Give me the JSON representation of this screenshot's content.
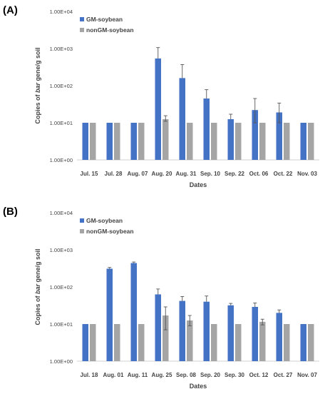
{
  "panels": [
    {
      "label": "(A)"
    },
    {
      "label": "(B)"
    }
  ],
  "chart_data": [
    {
      "type": "bar",
      "panel_label": "(A)",
      "xlabel": "Dates",
      "ylabel_parts": [
        "Copies of ",
        "bar",
        " gene/g soil"
      ],
      "y_scale": "log",
      "ylim": [
        1,
        10000
      ],
      "y_ticks": [
        "1.00E+00",
        "1.00E+01",
        "1.00E+02",
        "1.00E+03",
        "1.00E+04"
      ],
      "legend_position": "top-left",
      "categories": [
        "Jul. 15",
        "Jul. 28",
        "Aug. 07",
        "Aug. 20",
        "Aug. 31",
        "Sep. 10",
        "Sep. 22",
        "Oct. 06",
        "Oct. 22",
        "Nov. 03"
      ],
      "series": [
        {
          "name": "GM-soybean",
          "color": "#4472c4",
          "values": [
            10,
            10,
            10,
            540,
            160,
            45,
            12.5,
            22,
            19,
            10
          ],
          "errors_up": [
            null,
            null,
            null,
            1060,
            370,
            78,
            17,
            45,
            34,
            null
          ],
          "errors_low": [
            null,
            null,
            null,
            null,
            null,
            null,
            null,
            10,
            10,
            null
          ]
        },
        {
          "name": "nonGM-soybean",
          "color": "#a5a5a5",
          "values": [
            10,
            10,
            10,
            12.5,
            10,
            10,
            10,
            10,
            10,
            10
          ],
          "errors_up": [
            null,
            null,
            null,
            15.5,
            null,
            null,
            null,
            null,
            null,
            null
          ],
          "errors_low": [
            null,
            null,
            null,
            11,
            null,
            null,
            null,
            null,
            null,
            null
          ]
        }
      ]
    },
    {
      "type": "bar",
      "panel_label": "(B)",
      "xlabel": "Dates",
      "ylabel_parts": [
        "Copies of ",
        "bar",
        " gene/g soil"
      ],
      "y_scale": "log",
      "ylim": [
        1,
        10000
      ],
      "y_ticks": [
        "1.00E+00",
        "1.00E+01",
        "1.00E+02",
        "1.00E+03",
        "1.00E+04"
      ],
      "legend_position": "top-left",
      "categories": [
        "Jul. 18",
        "Aug. 01",
        "Aug. 11",
        "Aug. 25",
        "Sep. 08",
        "Sep. 20",
        "Sep. 30",
        "Oct. 12",
        "Oct. 27",
        "Nov. 07"
      ],
      "series": [
        {
          "name": "GM-soybean",
          "color": "#4472c4",
          "values": [
            10,
            310,
            440,
            63,
            42,
            40,
            32,
            29,
            20,
            10
          ],
          "errors_up": [
            null,
            335,
            470,
            88,
            55,
            57,
            36,
            37,
            24,
            null
          ],
          "errors_low": [
            null,
            null,
            null,
            null,
            null,
            null,
            null,
            null,
            null,
            null
          ]
        },
        {
          "name": "nonGM-soybean",
          "color": "#a5a5a5",
          "values": [
            10,
            10,
            10,
            17,
            12.5,
            10,
            10,
            11.5,
            10,
            10
          ],
          "errors_up": [
            null,
            null,
            null,
            29,
            17,
            null,
            null,
            13.5,
            null,
            null
          ],
          "errors_low": [
            null,
            null,
            null,
            7,
            9,
            null,
            null,
            9.5,
            null,
            null
          ]
        }
      ]
    }
  ]
}
